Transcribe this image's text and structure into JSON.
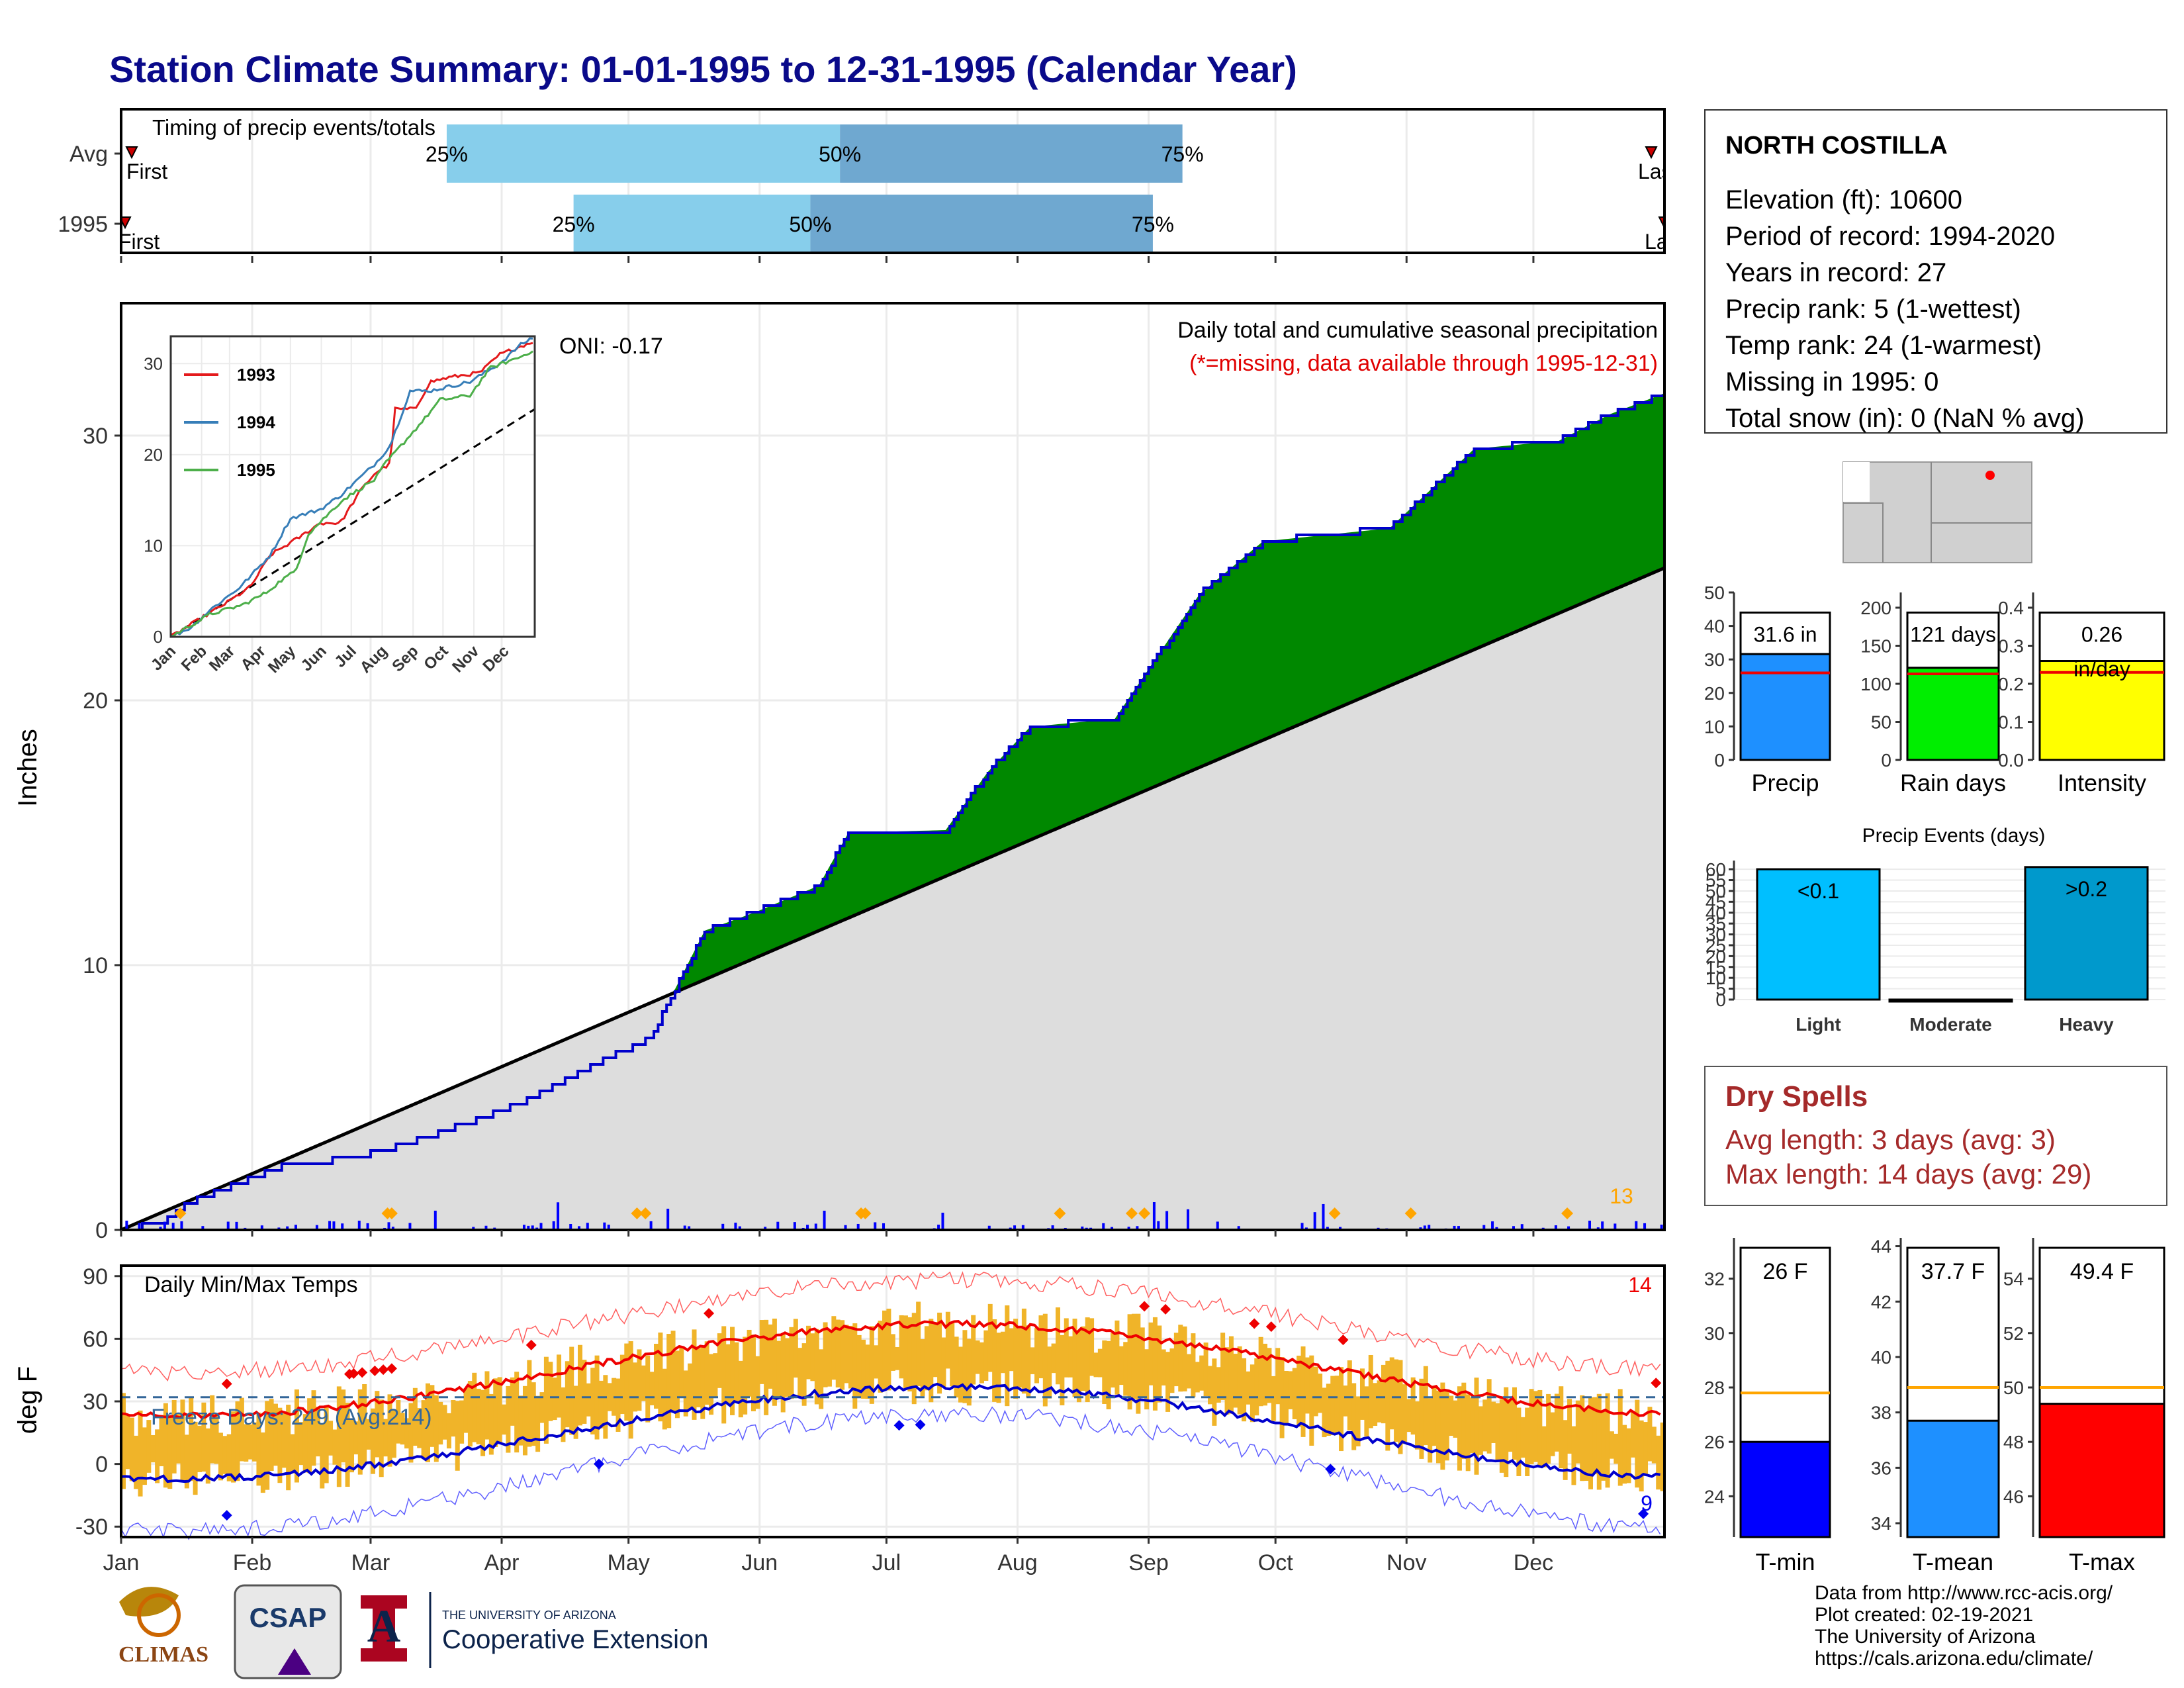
{
  "title": "Station Climate Summary: 01-01-1995 to 12-31-1995 (Calendar Year)",
  "timing": {
    "label": "Timing of precip events/totals",
    "rows": [
      {
        "name": "Avg",
        "first": "First",
        "last": "Last",
        "p25_doy": 77,
        "p50_doy": 170,
        "p75_doy": 251
      },
      {
        "name": "1995",
        "first": "First",
        "last": "Last",
        "p25_doy": 107,
        "p50_doy": 163,
        "p75_doy": 244
      }
    ],
    "pct_labels": [
      "25%",
      "50%",
      "75%"
    ]
  },
  "station": {
    "name": "NORTH COSTILLA",
    "lines": [
      "Elevation (ft): 10600",
      "Period of record: 1994-2020",
      "Years in record: 27",
      "Precip rank: 5 (1-wettest)",
      "Temp rank: 24 (1-warmest)",
      "Missing in 1995: 0",
      "Total snow (in): 0 (NaN % avg)"
    ]
  },
  "precip_panel": {
    "ylabel": "Inches",
    "note1": "Daily total and cumulative seasonal precipitation",
    "note2": "(*=missing, data available through 1995-12-31)",
    "oni": "ONI: -0.17",
    "event_count": "13",
    "yticks": [
      0,
      10,
      20,
      30
    ]
  },
  "inset": {
    "series": [
      {
        "name": "1993",
        "color": "#e41a1c"
      },
      {
        "name": "1994",
        "color": "#377eb8"
      },
      {
        "name": "1995",
        "color": "#4daf4a"
      }
    ],
    "yticks": [
      0,
      10,
      20,
      30
    ],
    "months": [
      "Jan",
      "Feb",
      "Mar",
      "Apr",
      "May",
      "Jun",
      "Jul",
      "Aug",
      "Sep",
      "Oct",
      "Nov",
      "Dec"
    ]
  },
  "temp_panel": {
    "ylabel": "deg F",
    "label": "Daily Min/Max Temps",
    "freeze": "Freeze Days: 249 (Avg:214)",
    "hot_count": "14",
    "cold_count": "9",
    "yticks": [
      -30,
      0,
      30,
      60,
      90
    ]
  },
  "months": [
    "Jan",
    "Feb",
    "Mar",
    "Apr",
    "May",
    "Jun",
    "Jul",
    "Aug",
    "Sep",
    "Oct",
    "Nov",
    "Dec"
  ],
  "summary_bars": [
    {
      "label": "Precip",
      "value": 31.6,
      "avg": 26,
      "text": "31.6 in",
      "color": "#1e90ff",
      "ylim": [
        0,
        50
      ],
      "yticks": [
        0,
        10,
        20,
        30,
        40,
        50
      ]
    },
    {
      "label": "Rain days",
      "value": 121,
      "avg": 113,
      "text": "121 days",
      "color": "#00ee00",
      "ylim": [
        0,
        220
      ],
      "yticks": [
        0,
        50,
        100,
        150,
        200
      ]
    },
    {
      "label": "Intensity",
      "value": 0.26,
      "avg": 0.23,
      "text": "0.26",
      "text2": "in/day",
      "color": "#ffff00",
      "ylim": [
        0,
        0.44
      ],
      "yticks": [
        0.0,
        0.1,
        0.2,
        0.3,
        0.4
      ]
    }
  ],
  "events": {
    "title": "Precip Events (days)",
    "bars": [
      {
        "label": "Light",
        "value": 60,
        "text": "<0.1",
        "color": "#00bfff"
      },
      {
        "label": "Moderate",
        "value": 0,
        "text": "",
        "color": "#1e90ff"
      },
      {
        "label": "Heavy",
        "value": 61,
        "text": ">0.2",
        "color": "#0099cc"
      }
    ],
    "yticks": [
      0,
      5,
      10,
      15,
      20,
      25,
      30,
      35,
      40,
      45,
      50,
      55,
      60
    ]
  },
  "dry_spells": {
    "title": "Dry Spells",
    "avg": "Avg length: 3 days (avg: 3)",
    "max": "Max length: 14 days (avg: 29)"
  },
  "temp_bars": [
    {
      "label": "T-min",
      "value": 26,
      "avg": 27.8,
      "text": "26 F",
      "color": "#0000ff",
      "ylim": [
        22.5,
        33.5
      ],
      "yticks": [
        24,
        26,
        28,
        30,
        32
      ]
    },
    {
      "label": "T-mean",
      "value": 37.7,
      "avg": 38.9,
      "text": "37.7 F",
      "color": "#1e90ff",
      "ylim": [
        33.5,
        44.3
      ],
      "yticks": [
        34,
        36,
        38,
        40,
        42,
        44
      ]
    },
    {
      "label": "T-max",
      "value": 49.4,
      "avg": 50,
      "text": "49.4 F",
      "color": "#ff0000",
      "ylim": [
        44.5,
        55.5
      ],
      "yticks": [
        46,
        48,
        50,
        52,
        54
      ]
    }
  ],
  "credits": [
    "Data from http://www.rcc-acis.org/",
    "Plot created: 02-19-2021",
    "The University of Arizona",
    "https://cals.arizona.edu/climate/"
  ],
  "logos": {
    "climas": "CLIMAS",
    "csap": "CSAP",
    "ua_small": "THE UNIVERSITY OF ARIZONA",
    "coop": "Cooperative Extension"
  }
}
